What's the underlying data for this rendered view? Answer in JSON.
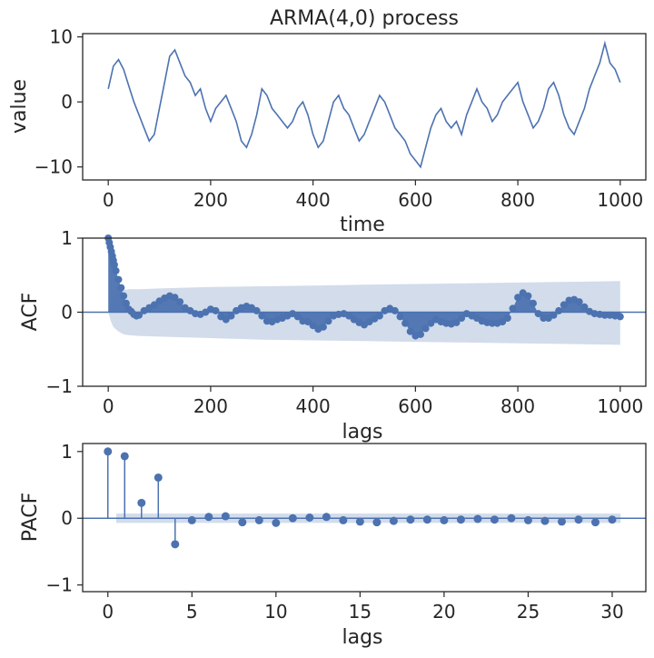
{
  "chart_data": [
    {
      "type": "line",
      "title": "ARMA(4,0) process",
      "xlabel": "time",
      "ylabel": "value",
      "xlim": [
        -50,
        1050
      ],
      "ylim": [
        -12,
        10.5
      ],
      "xticks": [
        0,
        200,
        400,
        600,
        800,
        1000
      ],
      "yticks": [
        -10,
        0,
        10
      ],
      "grid": false,
      "series": [
        {
          "color": "#4c72b0",
          "x": [
            0,
            10,
            20,
            30,
            40,
            50,
            60,
            70,
            80,
            90,
            100,
            110,
            120,
            130,
            140,
            150,
            160,
            170,
            180,
            190,
            200,
            210,
            220,
            230,
            240,
            250,
            260,
            270,
            280,
            290,
            300,
            310,
            320,
            330,
            340,
            350,
            360,
            370,
            380,
            390,
            400,
            410,
            420,
            430,
            440,
            450,
            460,
            470,
            480,
            490,
            500,
            510,
            520,
            530,
            540,
            550,
            560,
            570,
            580,
            590,
            600,
            610,
            620,
            630,
            640,
            650,
            660,
            670,
            680,
            690,
            700,
            710,
            720,
            730,
            740,
            750,
            760,
            770,
            780,
            790,
            800,
            810,
            820,
            830,
            840,
            850,
            860,
            870,
            880,
            890,
            900,
            910,
            920,
            930,
            940,
            950,
            960,
            970,
            980,
            990,
            1000
          ],
          "values": [
            2,
            5.5,
            6.5,
            5,
            2.5,
            0,
            -2,
            -4,
            -6,
            -5,
            -1,
            3,
            7,
            8,
            6,
            4,
            3,
            1,
            2,
            -1,
            -3,
            -1,
            0,
            1,
            -1,
            -3,
            -6,
            -7,
            -5,
            -2,
            2,
            1,
            -1,
            -2,
            -3,
            -4,
            -3,
            -1,
            0,
            -2,
            -5,
            -7,
            -6,
            -3,
            0,
            1,
            -1,
            -2,
            -4,
            -6,
            -5,
            -3,
            -1,
            1,
            0,
            -2,
            -4,
            -5,
            -6,
            -8,
            -9,
            -10,
            -7,
            -4,
            -2,
            -1,
            -3,
            -4,
            -3,
            -5,
            -2,
            0,
            2,
            0,
            -1,
            -3,
            -2,
            0,
            1,
            2,
            3,
            0,
            -2,
            -4,
            -3,
            -1,
            2,
            3,
            1,
            -2,
            -4,
            -5,
            -3,
            -1,
            2,
            4,
            6,
            9,
            6,
            5,
            3
          ]
        }
      ]
    },
    {
      "type": "bar",
      "title": "",
      "xlabel": "lags",
      "ylabel": "ACF",
      "xlim": [
        -50,
        1050
      ],
      "ylim": [
        -1,
        1
      ],
      "xticks": [
        0,
        200,
        400,
        600,
        800,
        1000
      ],
      "yticks": [
        -1,
        0,
        1
      ],
      "grid": false,
      "acf": {
        "lags": [
          0,
          2,
          4,
          6,
          8,
          10,
          12,
          15,
          20,
          25,
          30,
          35,
          40,
          45,
          50,
          55,
          60,
          70,
          80,
          90,
          100,
          110,
          120,
          130,
          140,
          150,
          160,
          170,
          180,
          190,
          200,
          210,
          220,
          230,
          240,
          250,
          260,
          270,
          280,
          290,
          300,
          310,
          320,
          330,
          340,
          350,
          360,
          370,
          380,
          390,
          400,
          410,
          420,
          430,
          440,
          450,
          460,
          470,
          480,
          490,
          500,
          510,
          520,
          530,
          540,
          550,
          560,
          570,
          580,
          590,
          600,
          610,
          620,
          630,
          640,
          650,
          660,
          670,
          680,
          690,
          700,
          710,
          720,
          730,
          740,
          750,
          760,
          770,
          780,
          790,
          800,
          810,
          820,
          830,
          840,
          850,
          860,
          870,
          880,
          890,
          900,
          910,
          920,
          930,
          940,
          950,
          960,
          970,
          980,
          990,
          1000
        ],
        "values": [
          1.0,
          0.94,
          0.88,
          0.82,
          0.76,
          0.7,
          0.64,
          0.56,
          0.44,
          0.33,
          0.22,
          0.12,
          0.04,
          0.01,
          -0.03,
          -0.05,
          -0.04,
          0.02,
          0.06,
          0.1,
          0.15,
          0.19,
          0.22,
          0.2,
          0.14,
          0.06,
          0.02,
          -0.02,
          -0.03,
          0.0,
          0.04,
          0.02,
          -0.06,
          -0.1,
          -0.05,
          0.02,
          0.06,
          0.08,
          0.06,
          0.02,
          -0.05,
          -0.12,
          -0.13,
          -0.1,
          -0.08,
          -0.05,
          -0.02,
          -0.06,
          -0.12,
          -0.13,
          -0.18,
          -0.23,
          -0.2,
          -0.12,
          -0.05,
          -0.03,
          -0.02,
          -0.05,
          -0.1,
          -0.14,
          -0.17,
          -0.13,
          -0.09,
          -0.05,
          0.02,
          0.05,
          0.02,
          -0.06,
          -0.15,
          -0.26,
          -0.32,
          -0.3,
          -0.22,
          -0.15,
          -0.1,
          -0.13,
          -0.15,
          -0.16,
          -0.14,
          -0.08,
          -0.02,
          -0.05,
          -0.08,
          -0.12,
          -0.14,
          -0.15,
          -0.15,
          -0.13,
          -0.08,
          0.05,
          0.2,
          0.26,
          0.22,
          0.12,
          -0.02,
          -0.08,
          -0.08,
          -0.04,
          0.02,
          0.1,
          0.16,
          0.17,
          0.14,
          0.07,
          0.01,
          -0.02,
          -0.03,
          -0.04,
          -0.04,
          -0.05,
          -0.06
        ]
      },
      "confidence_band": {
        "lags": [
          0,
          5,
          10,
          20,
          30,
          40,
          60,
          100,
          200,
          300,
          400,
          500,
          600,
          700,
          800,
          900,
          1000
        ],
        "upper": [
          0.0,
          0.12,
          0.2,
          0.26,
          0.3,
          0.31,
          0.31,
          0.32,
          0.34,
          0.35,
          0.36,
          0.37,
          0.38,
          0.39,
          0.4,
          0.41,
          0.42
        ],
        "lower": [
          0.0,
          -0.12,
          -0.2,
          -0.26,
          -0.3,
          -0.31,
          -0.32,
          -0.33,
          -0.35,
          -0.37,
          -0.38,
          -0.39,
          -0.4,
          -0.41,
          -0.42,
          -0.43,
          -0.44
        ]
      }
    },
    {
      "type": "scatter",
      "title": "",
      "xlabel": "lags",
      "ylabel": "PACF",
      "xlim": [
        -1.5,
        32
      ],
      "ylim": [
        -1.1,
        1.12
      ],
      "xticks": [
        0,
        5,
        10,
        15,
        20,
        25,
        30
      ],
      "yticks": [
        -1,
        0,
        1
      ],
      "grid": false,
      "x": [
        0,
        1,
        2,
        3,
        4,
        5,
        6,
        7,
        8,
        9,
        10,
        11,
        12,
        13,
        14,
        15,
        16,
        17,
        18,
        19,
        20,
        21,
        22,
        23,
        24,
        25,
        26,
        27,
        28,
        29,
        30
      ],
      "values": [
        1.0,
        0.93,
        0.23,
        0.61,
        -0.39,
        -0.03,
        0.02,
        0.03,
        -0.06,
        -0.03,
        -0.07,
        0.0,
        0.01,
        0.02,
        -0.03,
        -0.05,
        -0.06,
        -0.04,
        -0.02,
        -0.02,
        -0.03,
        -0.02,
        -0.01,
        -0.02,
        0.0,
        -0.03,
        -0.04,
        -0.05,
        -0.02,
        -0.06,
        -0.02
      ],
      "confidence_band": {
        "x": [
          0.5,
          30.5
        ],
        "upper": 0.07,
        "lower": -0.07
      }
    }
  ]
}
